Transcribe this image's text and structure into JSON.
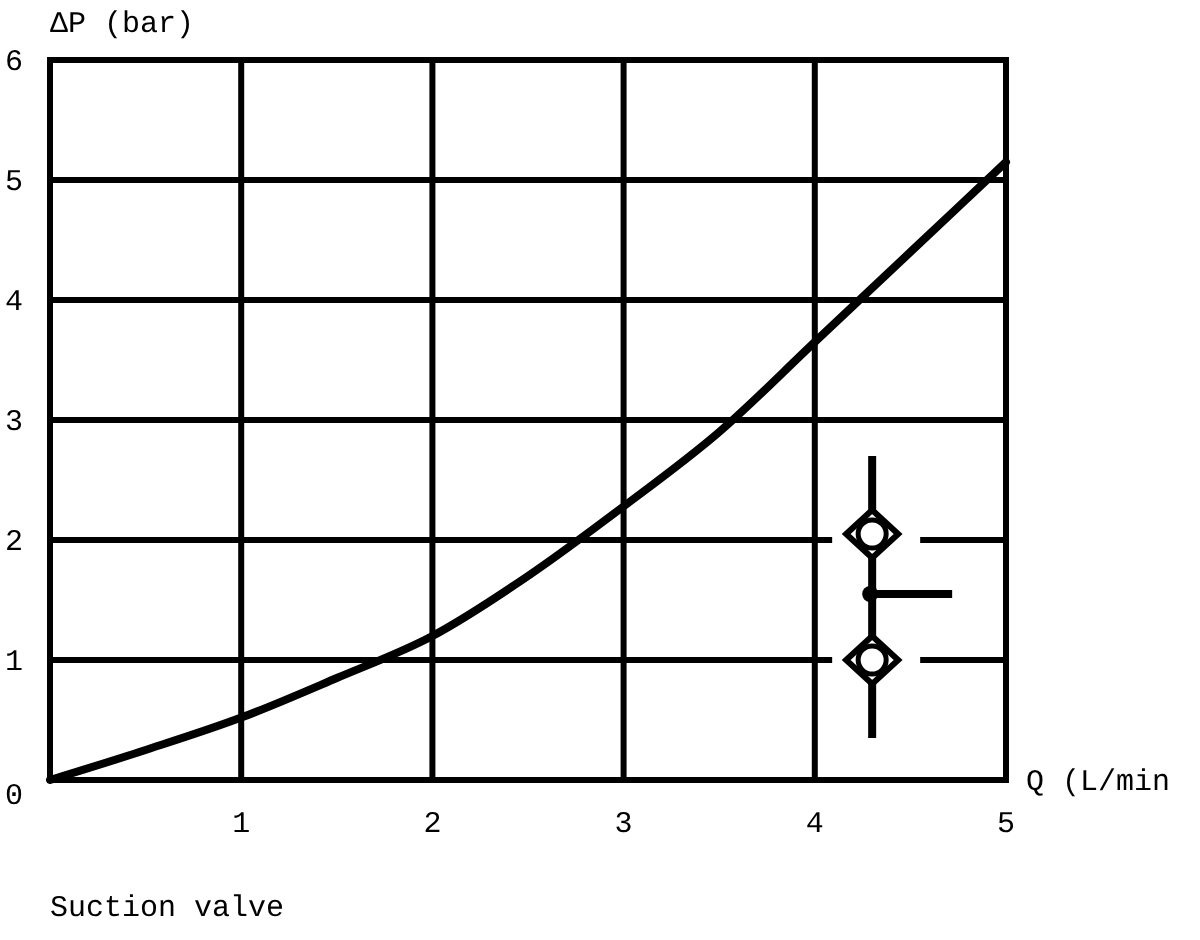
{
  "chart_data": {
    "type": "line",
    "ylabel": "ΔP (bar)",
    "xlabel": "Q (L/min",
    "annotations": [
      "Suction valve"
    ],
    "x": [
      0,
      0.5,
      1,
      1.5,
      2,
      2.5,
      3,
      3.5,
      4,
      4.5,
      5
    ],
    "series": [
      {
        "color": "#000000",
        "values": [
          0,
          0.25,
          0.52,
          0.85,
          1.2,
          1.7,
          2.28,
          2.9,
          3.65,
          4.4,
          5.15
        ]
      }
    ],
    "xlim": [
      0,
      5
    ],
    "xticks": [
      {
        "value": 0,
        "label": null
      },
      1,
      2,
      3,
      4,
      5
    ],
    "ylim": [
      0,
      6
    ],
    "yticks": [
      0,
      1,
      2,
      3,
      4,
      5,
      6
    ],
    "grid": true,
    "marker": "none",
    "line_style": "solid"
  }
}
